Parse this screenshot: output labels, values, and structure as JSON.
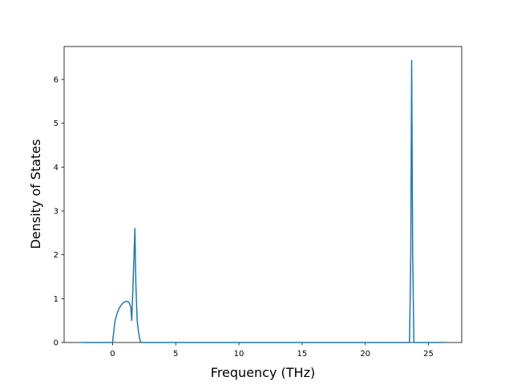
{
  "chart_data": {
    "type": "line",
    "x_label": "Frequency (THz)",
    "y_label": "Density of States",
    "x": [
      -2.4,
      -1.0,
      0.0,
      0.1,
      0.2,
      0.35,
      0.5,
      0.7,
      0.9,
      1.1,
      1.3,
      1.45,
      1.52,
      1.62,
      1.77,
      1.85,
      1.95,
      2.05,
      2.2,
      2.3,
      5.0,
      10.0,
      15.0,
      20.0,
      23.5,
      23.6,
      23.67,
      23.75,
      23.85,
      25.0,
      26.2
    ],
    "series": [
      {
        "name": "DOS",
        "color": "#1f77b4",
        "values": [
          0,
          0,
          0,
          0.25,
          0.5,
          0.65,
          0.77,
          0.86,
          0.92,
          0.94,
          0.92,
          0.8,
          0.5,
          1.3,
          2.6,
          1.3,
          0.5,
          0.25,
          0.02,
          0,
          0,
          0,
          0,
          0,
          0,
          2.0,
          6.43,
          2.0,
          0,
          0,
          0
        ]
      }
    ],
    "xlim": [
      -3.83,
      27.63
    ],
    "ylim": [
      0,
      6.75
    ],
    "xticks": [
      0,
      5,
      10,
      15,
      20,
      25
    ],
    "yticks": [
      0,
      1,
      2,
      3,
      4,
      5,
      6
    ]
  }
}
